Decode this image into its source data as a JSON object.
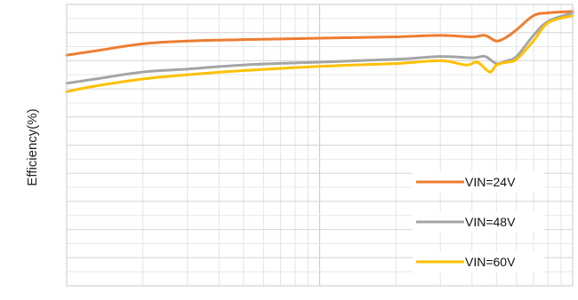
{
  "chart_data": {
    "type": "line",
    "title": "",
    "xlabel": "",
    "ylabel": "Efficiency(%)",
    "x_scale": "log",
    "xlim": [
      0.1,
      10
    ],
    "ylim": [
      0,
      100
    ],
    "grid": true,
    "legend_position": "bottom-right",
    "series": [
      {
        "name": "VIN=24V",
        "color": "#ED7D31",
        "x": [
          0.1,
          0.13,
          0.2,
          0.3,
          0.5,
          1,
          2,
          3,
          4,
          4.5,
          5,
          5.5,
          6,
          7,
          8,
          10
        ],
        "y": [
          82,
          83.5,
          86,
          87,
          87.5,
          88,
          88.5,
          89,
          88.5,
          89,
          87,
          88.5,
          91,
          96,
          97,
          97.5
        ]
      },
      {
        "name": "VIN=48V",
        "color": "#A5A5A5",
        "x": [
          0.1,
          0.13,
          0.2,
          0.3,
          0.5,
          1,
          2,
          3,
          4,
          4.5,
          5,
          5.5,
          6,
          7,
          8,
          10
        ],
        "y": [
          72,
          73.5,
          76,
          77,
          78.5,
          79.5,
          80.5,
          81.5,
          81,
          81.5,
          79,
          80,
          81.5,
          89,
          94,
          97
        ]
      },
      {
        "name": "VIN=60V",
        "color": "#FFC000",
        "x": [
          0.1,
          0.13,
          0.2,
          0.3,
          0.5,
          1,
          2,
          3,
          3.8,
          4.2,
          4.7,
          5,
          5.5,
          6,
          7,
          8,
          10
        ],
        "y": [
          69,
          71,
          73.5,
          75,
          76.5,
          78,
          79,
          80,
          78.5,
          79.5,
          76,
          78.5,
          79.5,
          80.5,
          87,
          93.5,
          96
        ]
      }
    ]
  }
}
